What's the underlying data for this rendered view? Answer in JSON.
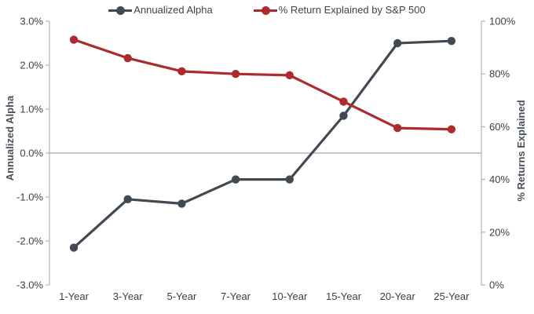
{
  "legend": {
    "items": [
      {
        "label": "Annualized Alpha"
      },
      {
        "label": "% Return Explained by S&P 500"
      }
    ]
  },
  "chart_data": {
    "type": "line",
    "categories": [
      "1-Year",
      "3-Year",
      "5-Year",
      "7-Year",
      "10-Year",
      "15-Year",
      "20-Year",
      "25-Year"
    ],
    "series": [
      {
        "name": "Annualized Alpha",
        "axis": "left",
        "color": "#414a52",
        "values": [
          -2.15,
          -1.05,
          -1.15,
          -0.6,
          -0.6,
          0.85,
          2.5,
          2.55
        ]
      },
      {
        "name": "% Return Explained by S&P 500",
        "axis": "right",
        "color": "#ad2b2e",
        "values": [
          93,
          86,
          81,
          80,
          79.5,
          69.5,
          59.5,
          59
        ]
      }
    ],
    "left_axis": {
      "title": "Annualized Alpha",
      "min": -3,
      "max": 3,
      "tick_values": [
        3,
        2,
        1,
        0,
        -1,
        -2,
        -3
      ],
      "tick_labels": [
        "3.0%",
        "2.0%",
        "1.0%",
        "0.0%",
        "-1.0%",
        "-2.0%",
        "-3.0%"
      ]
    },
    "right_axis": {
      "title": "% Returns Explained",
      "min": 0,
      "max": 100,
      "tick_values": [
        100,
        80,
        60,
        40,
        20,
        0
      ],
      "tick_labels": [
        "100%",
        "80%",
        "60%",
        "40%",
        "20%",
        "0%"
      ]
    },
    "gridline_left_value": 0,
    "legend_position": "top",
    "grid": "single-zero-line"
  },
  "colors": {
    "axis_line": "#a6a6a6",
    "zero_gridline": "#8c8c8c",
    "tick_label": "#3f3f3f",
    "axis_title": "#475059",
    "background": "#ffffff"
  }
}
